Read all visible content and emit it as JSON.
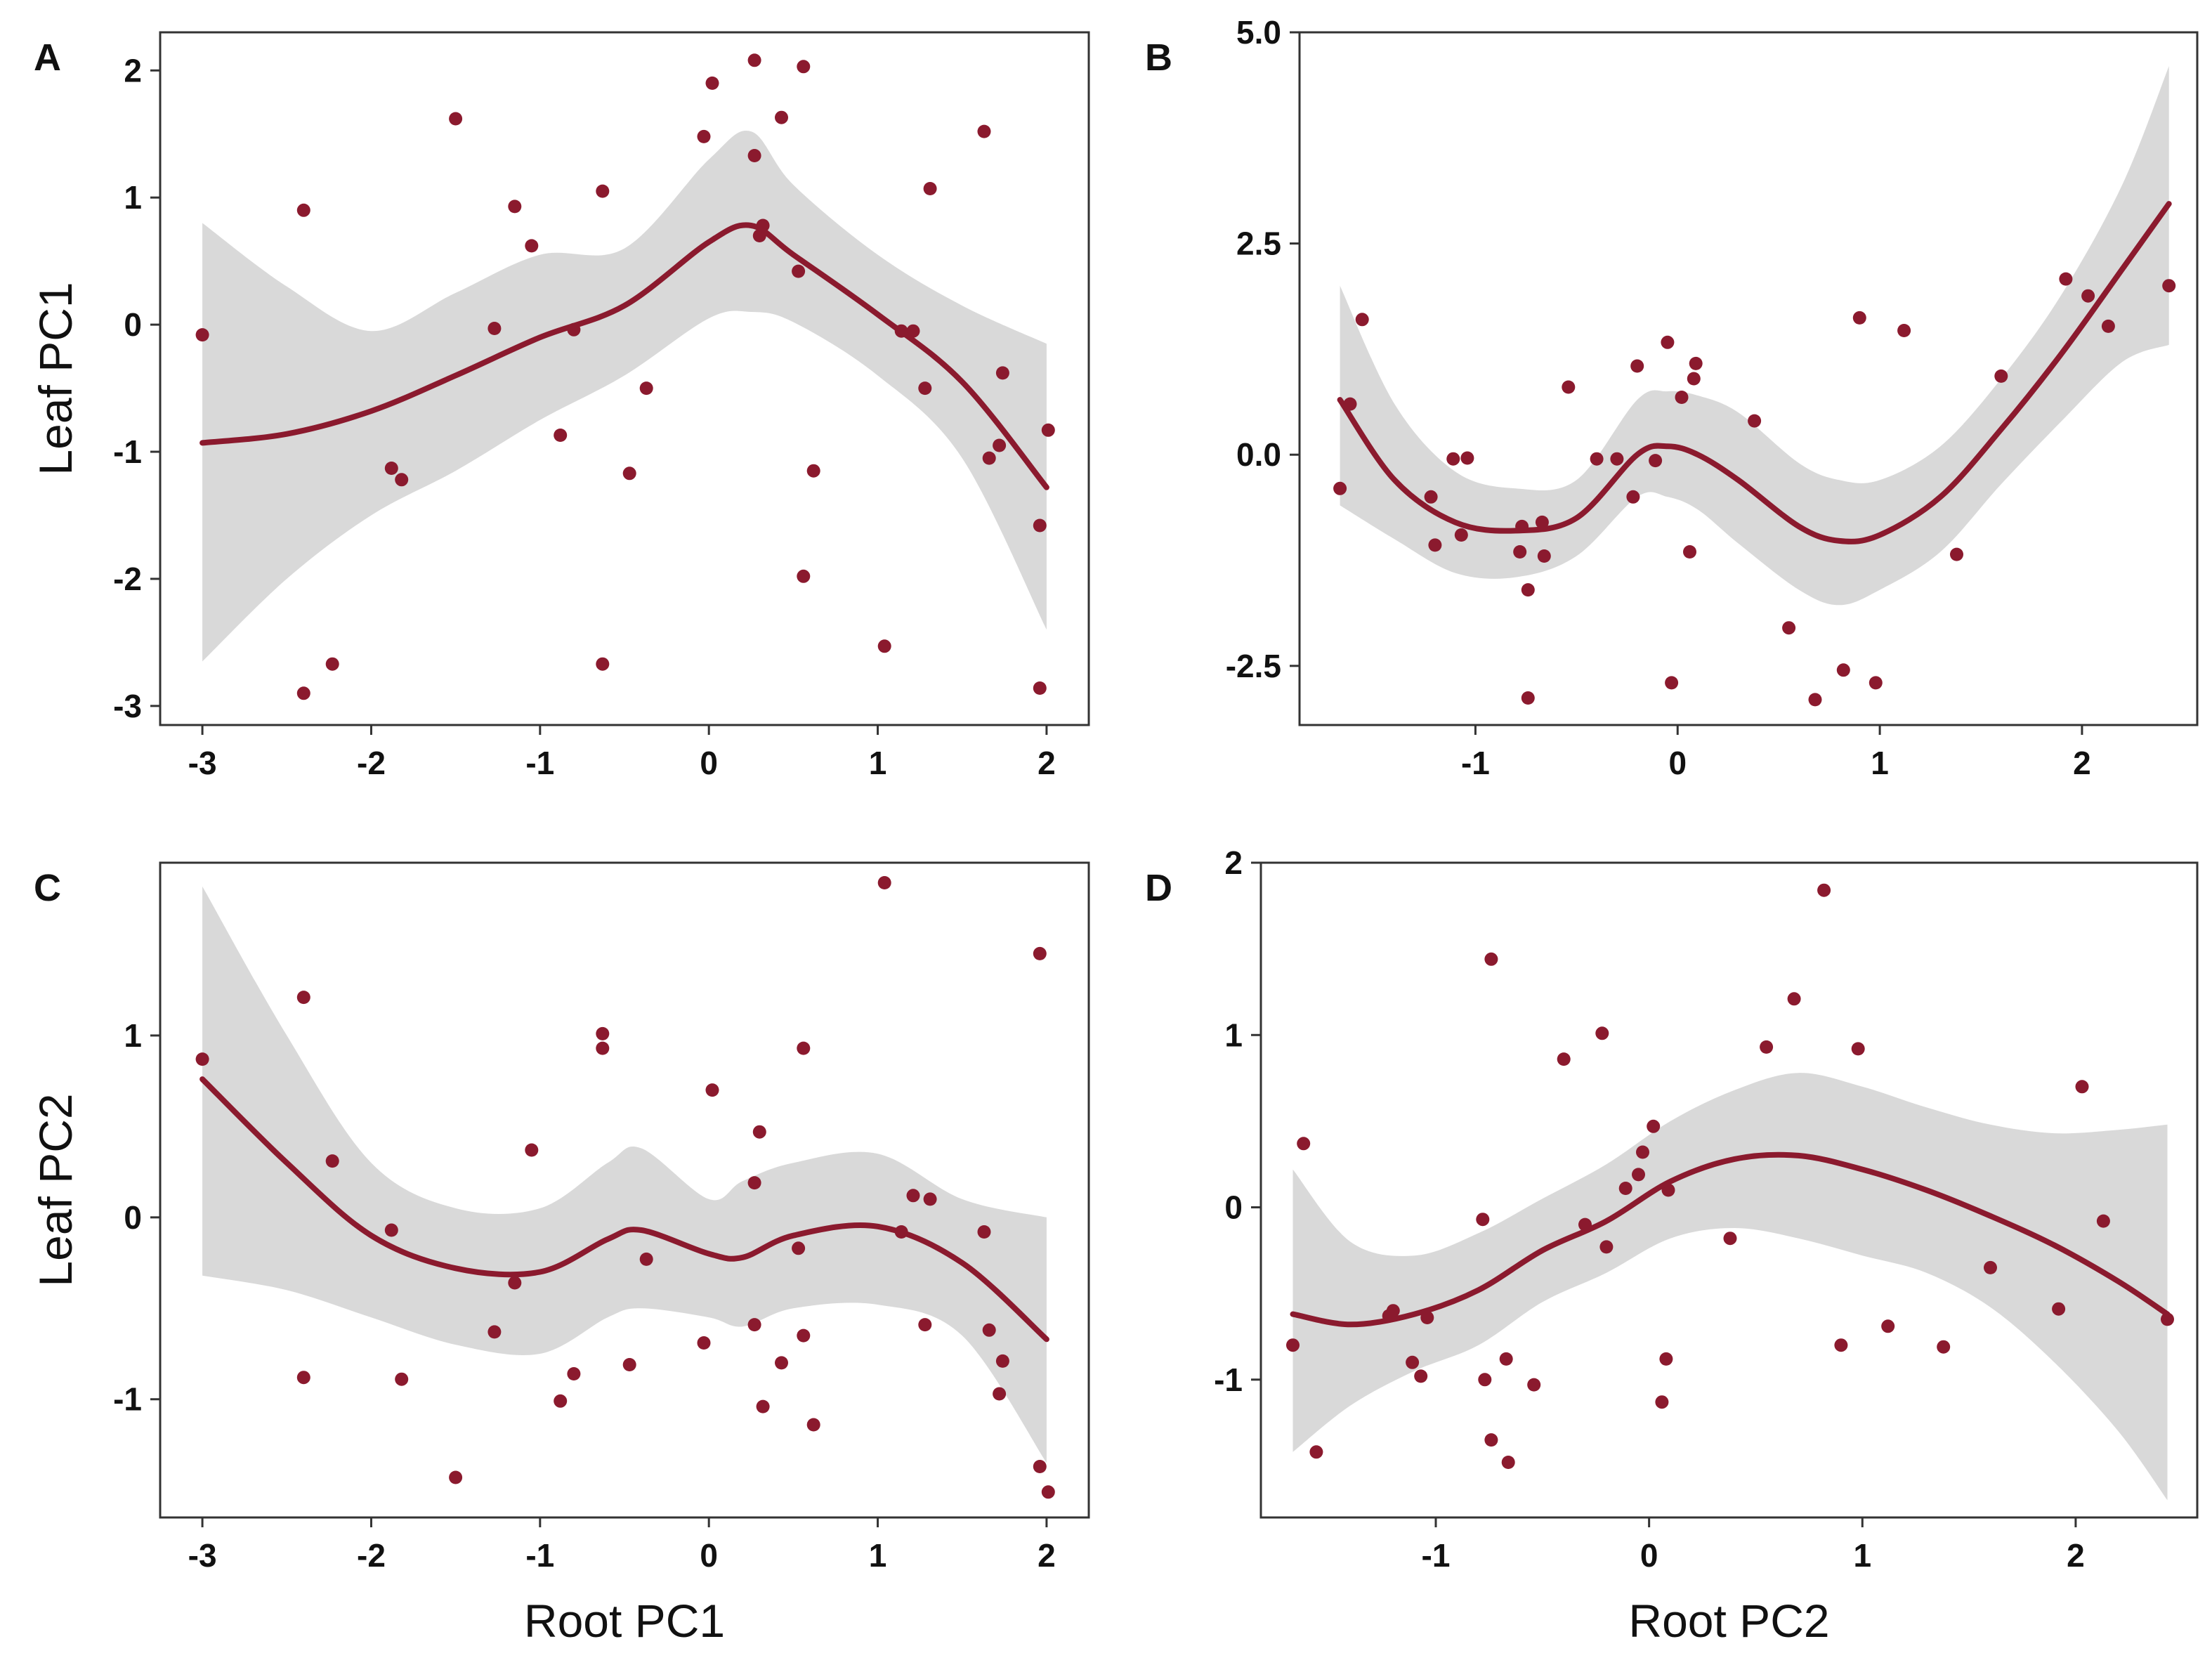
{
  "colors": {
    "point": "#8b1a2e",
    "line": "#8b1a2e",
    "band": "#d9d9d9",
    "axis": "#333333"
  },
  "chart_data": [
    {
      "type": "scatter",
      "panel_label": "A",
      "xlabel": "",
      "ylabel": "Leaf PC1",
      "xlim": [
        -3.25,
        2.25
      ],
      "ylim": [
        -3.15,
        2.3
      ],
      "xticks": [
        -3,
        -2,
        -1,
        0,
        1,
        2
      ],
      "xtick_labels": [
        "-3",
        "-2",
        "-1",
        "0",
        "1",
        "2"
      ],
      "yticks": [
        -3,
        -2,
        -1,
        0,
        1,
        2
      ],
      "ytick_labels": [
        "-3",
        "-2",
        "-1",
        "0",
        "1",
        "2"
      ],
      "points": [
        [
          -3.0,
          -0.08
        ],
        [
          -2.4,
          0.9
        ],
        [
          -2.4,
          -2.9
        ],
        [
          -2.23,
          -2.67
        ],
        [
          -1.88,
          -1.13
        ],
        [
          -1.82,
          -1.22
        ],
        [
          -1.5,
          1.62
        ],
        [
          -1.27,
          -0.03
        ],
        [
          -1.15,
          0.93
        ],
        [
          -1.05,
          0.62
        ],
        [
          -0.88,
          -0.87
        ],
        [
          -0.8,
          -0.04
        ],
        [
          -0.63,
          1.05
        ],
        [
          -0.63,
          -2.67
        ],
        [
          -0.47,
          -1.17
        ],
        [
          -0.37,
          -0.5
        ],
        [
          -0.03,
          1.48
        ],
        [
          0.02,
          1.9
        ],
        [
          0.27,
          2.08
        ],
        [
          0.27,
          1.33
        ],
        [
          0.3,
          0.7
        ],
        [
          0.32,
          0.78
        ],
        [
          0.43,
          1.63
        ],
        [
          0.53,
          0.42
        ],
        [
          0.56,
          2.03
        ],
        [
          0.56,
          -1.98
        ],
        [
          0.62,
          -1.15
        ],
        [
          1.04,
          -2.53
        ],
        [
          1.14,
          -0.05
        ],
        [
          1.21,
          -0.05
        ],
        [
          1.28,
          -0.5
        ],
        [
          1.31,
          1.07
        ],
        [
          1.63,
          1.52
        ],
        [
          1.66,
          -1.05
        ],
        [
          1.72,
          -0.95
        ],
        [
          1.74,
          -0.38
        ],
        [
          1.96,
          -1.58
        ],
        [
          1.96,
          -2.86
        ],
        [
          2.01,
          -0.83
        ]
      ],
      "fit": [
        [
          -3.0,
          -0.93
        ],
        [
          -2.5,
          -0.86
        ],
        [
          -2.0,
          -0.68
        ],
        [
          -1.5,
          -0.4
        ],
        [
          -1.0,
          -0.1
        ],
        [
          -0.5,
          0.15
        ],
        [
          0.0,
          0.65
        ],
        [
          0.25,
          0.78
        ],
        [
          0.5,
          0.55
        ],
        [
          1.0,
          0.08
        ],
        [
          1.5,
          -0.45
        ],
        [
          2.0,
          -1.28
        ]
      ],
      "band_upper": [
        [
          -3.0,
          0.8
        ],
        [
          -2.5,
          0.3
        ],
        [
          -2.0,
          -0.05
        ],
        [
          -1.5,
          0.25
        ],
        [
          -1.0,
          0.55
        ],
        [
          -0.5,
          0.6
        ],
        [
          0.0,
          1.3
        ],
        [
          0.25,
          1.52
        ],
        [
          0.5,
          1.1
        ],
        [
          1.0,
          0.55
        ],
        [
          1.5,
          0.15
        ],
        [
          2.0,
          -0.15
        ]
      ],
      "band_lower": [
        [
          -3.0,
          -2.65
        ],
        [
          -2.5,
          -2.0
        ],
        [
          -2.0,
          -1.5
        ],
        [
          -1.5,
          -1.15
        ],
        [
          -1.0,
          -0.75
        ],
        [
          -0.5,
          -0.4
        ],
        [
          0.0,
          0.05
        ],
        [
          0.25,
          0.1
        ],
        [
          0.5,
          0.02
        ],
        [
          1.0,
          -0.4
        ],
        [
          1.5,
          -1.05
        ],
        [
          2.0,
          -2.4
        ]
      ]
    },
    {
      "type": "scatter",
      "panel_label": "B",
      "xlabel": "",
      "ylabel": "",
      "xlim": [
        -1.87,
        2.57
      ],
      "ylim": [
        -3.2,
        5.0
      ],
      "xticks": [
        -1,
        0,
        1,
        2
      ],
      "xtick_labels": [
        "-1",
        "0",
        "1",
        "2"
      ],
      "yticks": [
        -2.5,
        0.0,
        2.5,
        5.0
      ],
      "ytick_labels": [
        "-2.5",
        "0.0",
        "2.5",
        "5.0"
      ],
      "points": [
        [
          -1.67,
          -0.4
        ],
        [
          -1.62,
          0.6
        ],
        [
          -1.56,
          1.6
        ],
        [
          -1.22,
          -0.5
        ],
        [
          -1.2,
          -1.07
        ],
        [
          -1.11,
          -0.05
        ],
        [
          -1.07,
          -0.95
        ],
        [
          -1.04,
          -0.04
        ],
        [
          -0.78,
          -1.15
        ],
        [
          -0.77,
          -0.85
        ],
        [
          -0.74,
          -1.6
        ],
        [
          -0.74,
          -2.88
        ],
        [
          -0.67,
          -0.8
        ],
        [
          -0.66,
          -1.2
        ],
        [
          -0.54,
          0.8
        ],
        [
          -0.4,
          -0.05
        ],
        [
          -0.3,
          -0.05
        ],
        [
          -0.22,
          -0.5
        ],
        [
          -0.2,
          1.05
        ],
        [
          -0.11,
          -0.07
        ],
        [
          -0.05,
          1.33
        ],
        [
          -0.03,
          -2.7
        ],
        [
          0.02,
          0.68
        ],
        [
          0.06,
          -1.15
        ],
        [
          0.08,
          0.9
        ],
        [
          0.09,
          1.08
        ],
        [
          0.38,
          0.4
        ],
        [
          0.55,
          -2.05
        ],
        [
          0.68,
          -2.9
        ],
        [
          0.82,
          -2.55
        ],
        [
          0.9,
          1.62
        ],
        [
          0.98,
          -2.7
        ],
        [
          1.12,
          1.47
        ],
        [
          1.38,
          -1.18
        ],
        [
          1.6,
          0.93
        ],
        [
          1.92,
          2.08
        ],
        [
          2.03,
          1.88
        ],
        [
          2.13,
          1.52
        ],
        [
          2.43,
          2.0
        ]
      ],
      "fit": [
        [
          -1.67,
          0.65
        ],
        [
          -1.4,
          -0.3
        ],
        [
          -1.1,
          -0.8
        ],
        [
          -0.8,
          -0.9
        ],
        [
          -0.5,
          -0.75
        ],
        [
          -0.2,
          0.0
        ],
        [
          -0.05,
          0.1
        ],
        [
          0.1,
          0.0
        ],
        [
          0.3,
          -0.3
        ],
        [
          0.6,
          -0.85
        ],
        [
          0.8,
          -1.02
        ],
        [
          1.0,
          -0.95
        ],
        [
          1.3,
          -0.5
        ],
        [
          1.6,
          0.3
        ],
        [
          1.9,
          1.2
        ],
        [
          2.2,
          2.2
        ],
        [
          2.43,
          2.97
        ]
      ],
      "band_upper": [
        [
          -1.67,
          2.0
        ],
        [
          -1.4,
          0.6
        ],
        [
          -1.1,
          -0.2
        ],
        [
          -0.8,
          -0.4
        ],
        [
          -0.5,
          -0.3
        ],
        [
          -0.2,
          0.65
        ],
        [
          -0.05,
          0.75
        ],
        [
          0.1,
          0.7
        ],
        [
          0.3,
          0.5
        ],
        [
          0.6,
          -0.1
        ],
        [
          0.8,
          -0.3
        ],
        [
          1.0,
          -0.3
        ],
        [
          1.3,
          0.1
        ],
        [
          1.6,
          0.9
        ],
        [
          1.9,
          1.9
        ],
        [
          2.2,
          3.2
        ],
        [
          2.43,
          4.6
        ]
      ],
      "band_lower": [
        [
          -1.67,
          -0.6
        ],
        [
          -1.4,
          -1.0
        ],
        [
          -1.1,
          -1.4
        ],
        [
          -0.8,
          -1.45
        ],
        [
          -0.5,
          -1.2
        ],
        [
          -0.2,
          -0.5
        ],
        [
          -0.05,
          -0.5
        ],
        [
          0.1,
          -0.65
        ],
        [
          0.3,
          -1.05
        ],
        [
          0.6,
          -1.6
        ],
        [
          0.8,
          -1.78
        ],
        [
          1.0,
          -1.6
        ],
        [
          1.3,
          -1.15
        ],
        [
          1.6,
          -0.35
        ],
        [
          1.9,
          0.4
        ],
        [
          2.2,
          1.1
        ],
        [
          2.43,
          1.3
        ]
      ]
    },
    {
      "type": "scatter",
      "panel_label": "C",
      "xlabel": "Root PC1",
      "ylabel": "Leaf PC2",
      "xlim": [
        -3.25,
        2.25
      ],
      "ylim": [
        -1.65,
        1.95
      ],
      "xticks": [
        -3,
        -2,
        -1,
        0,
        1,
        2
      ],
      "xtick_labels": [
        "-3",
        "-2",
        "-1",
        "0",
        "1",
        "2"
      ],
      "yticks": [
        -1,
        0,
        1
      ],
      "ytick_labels": [
        "-1",
        "0",
        "1"
      ],
      "points": [
        [
          -3.0,
          0.87
        ],
        [
          -2.4,
          1.21
        ],
        [
          -2.4,
          -0.88
        ],
        [
          -2.23,
          0.31
        ],
        [
          -1.88,
          -0.07
        ],
        [
          -1.82,
          -0.89
        ],
        [
          -1.5,
          -1.43
        ],
        [
          -1.27,
          -0.63
        ],
        [
          -1.15,
          -0.36
        ],
        [
          -1.05,
          0.37
        ],
        [
          -0.88,
          -1.01
        ],
        [
          -0.8,
          -0.86
        ],
        [
          -0.63,
          1.01
        ],
        [
          -0.63,
          0.93
        ],
        [
          -0.47,
          -0.81
        ],
        [
          -0.37,
          -0.23
        ],
        [
          -0.03,
          -0.69
        ],
        [
          0.02,
          0.7
        ],
        [
          0.27,
          0.19
        ],
        [
          0.27,
          -0.59
        ],
        [
          0.3,
          0.47
        ],
        [
          0.32,
          -1.04
        ],
        [
          0.43,
          -0.8
        ],
        [
          0.53,
          -0.17
        ],
        [
          0.56,
          0.93
        ],
        [
          0.56,
          -0.65
        ],
        [
          0.62,
          -1.14
        ],
        [
          1.04,
          1.84
        ],
        [
          1.14,
          -0.08
        ],
        [
          1.21,
          0.12
        ],
        [
          1.28,
          -0.59
        ],
        [
          1.31,
          0.1
        ],
        [
          1.63,
          -0.08
        ],
        [
          1.66,
          -0.62
        ],
        [
          1.72,
          -0.97
        ],
        [
          1.74,
          -0.79
        ],
        [
          1.96,
          1.45
        ],
        [
          1.96,
          -1.37
        ],
        [
          2.01,
          -1.51
        ]
      ],
      "fit": [
        [
          -3.0,
          0.76
        ],
        [
          -2.5,
          0.3
        ],
        [
          -2.0,
          -0.1
        ],
        [
          -1.5,
          -0.28
        ],
        [
          -1.0,
          -0.3
        ],
        [
          -0.6,
          -0.12
        ],
        [
          -0.4,
          -0.07
        ],
        [
          0.0,
          -0.2
        ],
        [
          0.2,
          -0.22
        ],
        [
          0.5,
          -0.1
        ],
        [
          1.0,
          -0.05
        ],
        [
          1.5,
          -0.25
        ],
        [
          2.0,
          -0.67
        ]
      ],
      "band_upper": [
        [
          -3.0,
          1.82
        ],
        [
          -2.5,
          1.0
        ],
        [
          -2.0,
          0.3
        ],
        [
          -1.5,
          0.05
        ],
        [
          -1.0,
          0.05
        ],
        [
          -0.6,
          0.3
        ],
        [
          -0.4,
          0.38
        ],
        [
          0.0,
          0.1
        ],
        [
          0.2,
          0.2
        ],
        [
          0.5,
          0.3
        ],
        [
          1.0,
          0.35
        ],
        [
          1.5,
          0.1
        ],
        [
          2.0,
          0.0
        ]
      ],
      "band_lower": [
        [
          -3.0,
          -0.32
        ],
        [
          -2.5,
          -0.4
        ],
        [
          -2.0,
          -0.55
        ],
        [
          -1.5,
          -0.7
        ],
        [
          -1.0,
          -0.75
        ],
        [
          -0.6,
          -0.55
        ],
        [
          -0.4,
          -0.5
        ],
        [
          0.0,
          -0.55
        ],
        [
          0.2,
          -0.6
        ],
        [
          0.5,
          -0.5
        ],
        [
          1.0,
          -0.48
        ],
        [
          1.5,
          -0.65
        ],
        [
          2.0,
          -1.35
        ]
      ]
    },
    {
      "type": "scatter",
      "panel_label": "D",
      "xlabel": "Root PC2",
      "ylabel": "",
      "xlim": [
        -1.82,
        2.57
      ],
      "ylim": [
        -1.8,
        2.0
      ],
      "xticks": [
        -1,
        0,
        1,
        2
      ],
      "xtick_labels": [
        "-1",
        "0",
        "1",
        "2"
      ],
      "yticks": [
        -1,
        0,
        1,
        2
      ],
      "ytick_labels": [
        "-1",
        "0",
        "1",
        "2"
      ],
      "points": [
        [
          -1.67,
          -0.8
        ],
        [
          -1.62,
          0.37
        ],
        [
          -1.56,
          -1.42
        ],
        [
          -1.22,
          -0.63
        ],
        [
          -1.2,
          -0.6
        ],
        [
          -1.11,
          -0.9
        ],
        [
          -1.07,
          -0.98
        ],
        [
          -1.04,
          -0.64
        ],
        [
          -0.78,
          -0.07
        ],
        [
          -0.77,
          -1.0
        ],
        [
          -0.74,
          1.44
        ],
        [
          -0.74,
          -1.35
        ],
        [
          -0.67,
          -0.88
        ],
        [
          -0.66,
          -1.48
        ],
        [
          -0.54,
          -1.03
        ],
        [
          -0.4,
          0.86
        ],
        [
          -0.3,
          -0.1
        ],
        [
          -0.22,
          1.01
        ],
        [
          -0.2,
          -0.23
        ],
        [
          -0.11,
          0.11
        ],
        [
          -0.05,
          0.19
        ],
        [
          -0.03,
          0.32
        ],
        [
          0.02,
          0.47
        ],
        [
          0.06,
          -1.13
        ],
        [
          0.08,
          -0.88
        ],
        [
          0.09,
          0.1
        ],
        [
          0.38,
          -0.18
        ],
        [
          0.55,
          0.93
        ],
        [
          0.68,
          1.21
        ],
        [
          0.82,
          1.84
        ],
        [
          0.9,
          -0.8
        ],
        [
          0.98,
          0.92
        ],
        [
          1.12,
          -0.69
        ],
        [
          1.38,
          -0.81
        ],
        [
          1.6,
          -0.35
        ],
        [
          1.92,
          -0.59
        ],
        [
          2.03,
          0.7
        ],
        [
          2.13,
          -0.08
        ],
        [
          2.43,
          -0.65
        ]
      ],
      "fit": [
        [
          -1.67,
          -0.62
        ],
        [
          -1.4,
          -0.68
        ],
        [
          -1.1,
          -0.62
        ],
        [
          -0.8,
          -0.48
        ],
        [
          -0.5,
          -0.25
        ],
        [
          -0.2,
          -0.08
        ],
        [
          0.1,
          0.15
        ],
        [
          0.4,
          0.28
        ],
        [
          0.7,
          0.3
        ],
        [
          1.0,
          0.22
        ],
        [
          1.3,
          0.1
        ],
        [
          1.6,
          -0.05
        ],
        [
          1.9,
          -0.22
        ],
        [
          2.2,
          -0.43
        ],
        [
          2.43,
          -0.62
        ]
      ],
      "band_upper": [
        [
          -1.67,
          0.22
        ],
        [
          -1.4,
          -0.2
        ],
        [
          -1.1,
          -0.28
        ],
        [
          -0.8,
          -0.15
        ],
        [
          -0.5,
          0.05
        ],
        [
          -0.2,
          0.25
        ],
        [
          0.1,
          0.5
        ],
        [
          0.4,
          0.68
        ],
        [
          0.7,
          0.78
        ],
        [
          1.0,
          0.7
        ],
        [
          1.3,
          0.58
        ],
        [
          1.6,
          0.48
        ],
        [
          1.9,
          0.43
        ],
        [
          2.2,
          0.45
        ],
        [
          2.43,
          0.48
        ]
      ],
      "band_lower": [
        [
          -1.67,
          -1.42
        ],
        [
          -1.4,
          -1.15
        ],
        [
          -1.1,
          -0.95
        ],
        [
          -0.8,
          -0.8
        ],
        [
          -0.5,
          -0.55
        ],
        [
          -0.2,
          -0.38
        ],
        [
          0.1,
          -0.18
        ],
        [
          0.4,
          -0.12
        ],
        [
          0.7,
          -0.18
        ],
        [
          1.0,
          -0.28
        ],
        [
          1.3,
          -0.38
        ],
        [
          1.6,
          -0.58
        ],
        [
          1.9,
          -0.9
        ],
        [
          2.2,
          -1.3
        ],
        [
          2.43,
          -1.7
        ]
      ]
    }
  ]
}
